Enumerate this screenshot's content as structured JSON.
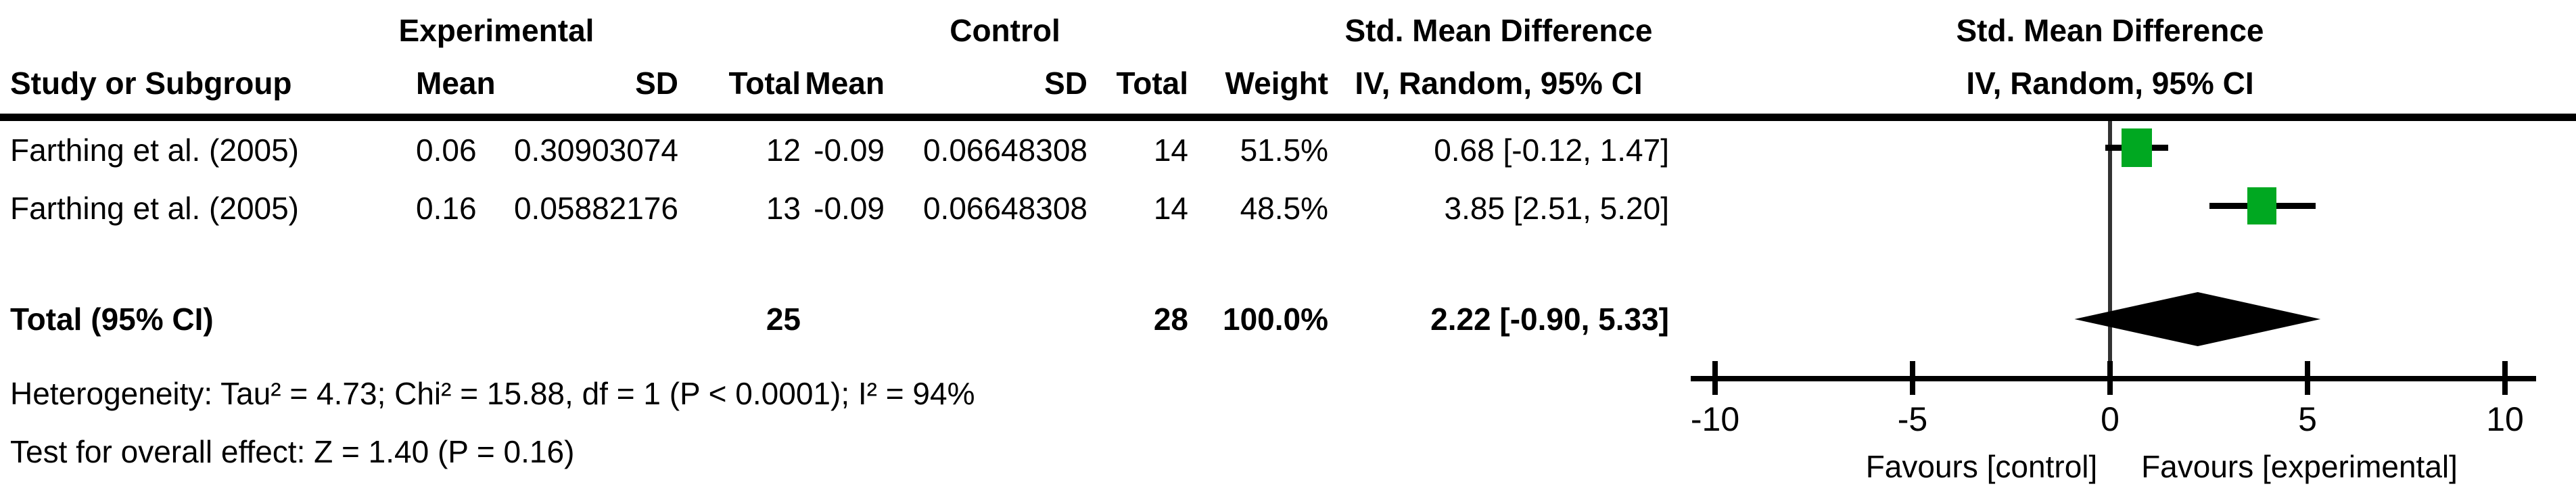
{
  "header": {
    "group_experimental": "Experimental",
    "group_control": "Control",
    "smd_line1": "Std. Mean Difference",
    "smd_line2": "IV, Random, 95% CI",
    "col_study": "Study or Subgroup",
    "col_mean": "Mean",
    "col_sd": "SD",
    "col_total": "Total",
    "col_weight": "Weight",
    "plot_title_line1": "Std. Mean Difference",
    "plot_title_line2": "IV, Random, 95% CI"
  },
  "rows": [
    {
      "study": "Farthing et al. (2005)",
      "exp_mean": "0.06",
      "exp_sd": "0.30903074",
      "exp_total": "12",
      "ctl_mean": "-0.09",
      "ctl_sd": "0.06648308",
      "ctl_total": "14",
      "weight": "51.5%",
      "ci_text": "0.68 [-0.12, 1.47]"
    },
    {
      "study": "Farthing et al. (2005)",
      "exp_mean": "0.16",
      "exp_sd": "0.05882176",
      "exp_total": "13",
      "ctl_mean": "-0.09",
      "ctl_sd": "0.06648308",
      "ctl_total": "14",
      "weight": "48.5%",
      "ci_text": "3.85 [2.51, 5.20]"
    }
  ],
  "total_row": {
    "label": "Total (95% CI)",
    "exp_total": "25",
    "ctl_total": "28",
    "weight": "100.0%",
    "ci_text": "2.22 [-0.90, 5.33]"
  },
  "footnotes": {
    "heterogeneity": "Heterogeneity: Tau² = 4.73; Chi² = 15.88, df = 1 (P < 0.0001); I² = 94%",
    "overall_effect": "Test for overall effect: Z = 1.40 (P = 0.16)"
  },
  "colors": {
    "marker_green": "#00a821",
    "diamond_black": "#000000"
  },
  "chart_data": {
    "type": "forest",
    "title": "Std. Mean Difference, IV, Random, 95% CI",
    "x_axis": {
      "min": -10,
      "max": 10,
      "ticks": [
        -10,
        -5,
        0,
        5,
        10
      ],
      "zero_line_at": 0
    },
    "studies": [
      {
        "label": "Farthing et al. (2005)",
        "effect": 0.68,
        "ci_low": -0.12,
        "ci_high": 1.47,
        "weight_pct": 51.5
      },
      {
        "label": "Farthing et al. (2005)",
        "effect": 3.85,
        "ci_low": 2.51,
        "ci_high": 5.2,
        "weight_pct": 48.5
      }
    ],
    "total": {
      "label": "Total (95% CI)",
      "effect": 2.22,
      "ci_low": -0.9,
      "ci_high": 5.33,
      "weight_pct": 100.0
    },
    "axis_labels": {
      "left": "Favours [control]",
      "right": "Favours [experimental]"
    },
    "legend_position": "none",
    "grid": false
  }
}
